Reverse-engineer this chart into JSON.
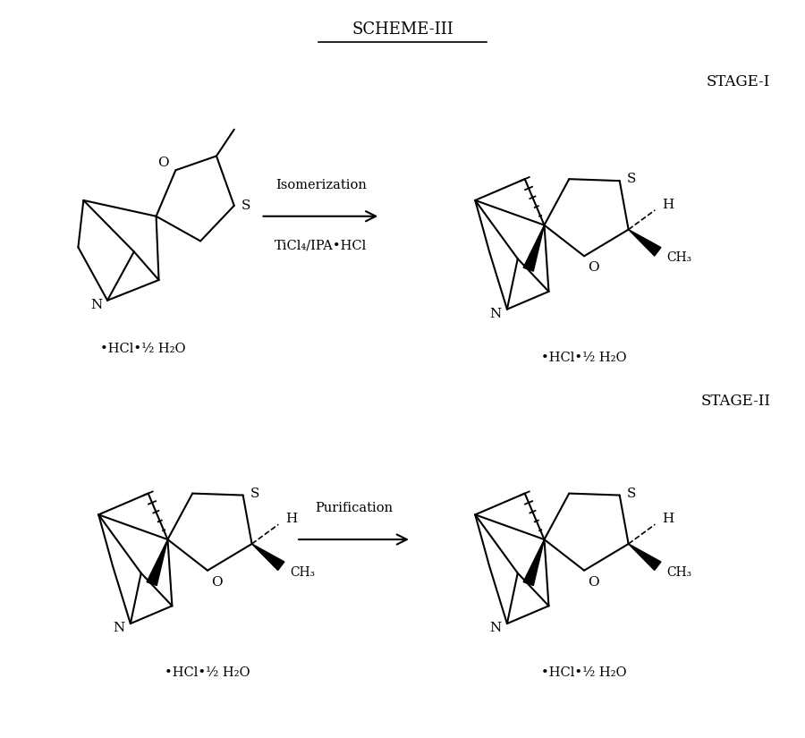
{
  "title": "SCHEME-III",
  "stage1_label": "STAGE-I",
  "stage2_label": "STAGE-II",
  "arrow1_text1": "Isomerization",
  "arrow1_text2": "TiCl₄/IPA•HCl",
  "arrow2_text": "Purification",
  "hcl_water": "•HCl•½ H₂O",
  "background": "#ffffff",
  "line_color": "#000000",
  "text_color": "#000000",
  "font_size": 11,
  "title_font_size": 13
}
